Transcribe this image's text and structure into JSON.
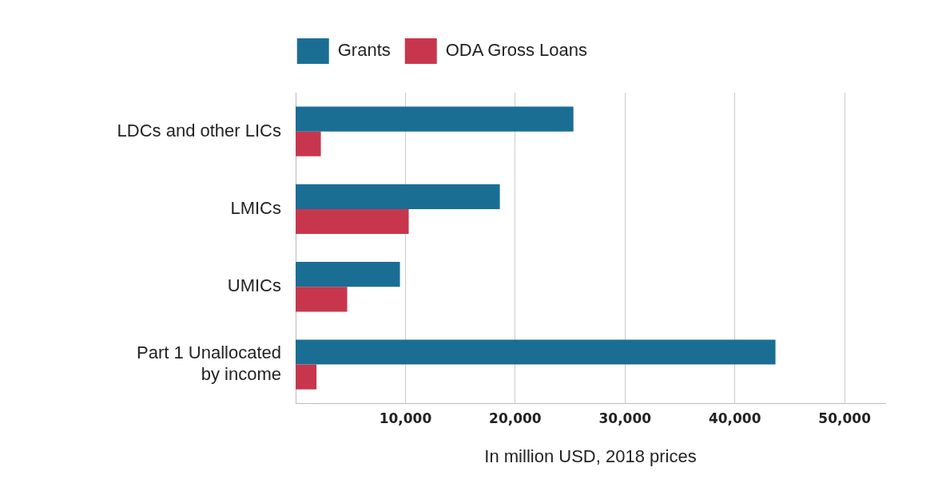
{
  "chart_data": {
    "type": "bar",
    "orientation": "horizontal",
    "xlabel": "In million USD, 2018 prices",
    "categories": [
      "LDCs and other LICs",
      "LMICs",
      "UMICs",
      "Part 1 Unallocated by income"
    ],
    "series": [
      {
        "name": "Grants",
        "color": "#1a6e94",
        "values": [
          25300,
          18600,
          9500,
          43700
        ]
      },
      {
        "name": "ODA Gross Loans",
        "color": "#c8364e",
        "values": [
          2300,
          10300,
          4700,
          1900
        ]
      }
    ],
    "xlim": [
      0,
      53700
    ],
    "xticks": [
      {
        "value": 10000,
        "label": "10,000"
      },
      {
        "value": 20000,
        "label": "20,000"
      },
      {
        "value": 30000,
        "label": "30,000"
      },
      {
        "value": 40000,
        "label": "40,000"
      },
      {
        "value": 50000,
        "label": "50,000"
      }
    ],
    "grid": "x",
    "legend": "top"
  }
}
